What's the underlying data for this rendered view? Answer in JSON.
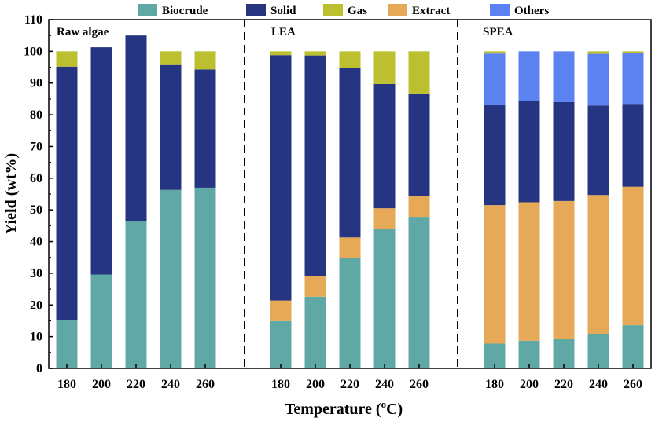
{
  "chart_data": {
    "type": "bar",
    "stacked": true,
    "xlabel": "Temperature (",
    "xlabel_sup": "o",
    "xlabel_end": "C)",
    "ylabel": "Yield (wt%)",
    "ylim": [
      0,
      110
    ],
    "yticks": [
      0,
      10,
      20,
      30,
      40,
      50,
      60,
      70,
      80,
      90,
      100,
      110
    ],
    "legend_position": "top",
    "series_names": [
      "Biocrude",
      "Solid",
      "Gas",
      "Extract",
      "Others"
    ],
    "colors": {
      "Biocrude": "#5fa8a5",
      "Solid": "#253582",
      "Gas": "#bcbf2f",
      "Extract": "#e5a957",
      "Others": "#5b82f0"
    },
    "groups": [
      {
        "label": "Raw algae",
        "categories": [
          "180",
          "200",
          "220",
          "240",
          "260"
        ],
        "series": {
          "Biocrude": [
            15.2,
            29.6,
            46.5,
            56.3,
            57.0
          ],
          "Extract": [
            0,
            0,
            0,
            0,
            0
          ],
          "Solid": [
            80.0,
            71.7,
            58.5,
            39.4,
            37.3
          ],
          "Gas": [
            4.8,
            0,
            0,
            4.3,
            5.7
          ],
          "Others": [
            0,
            0,
            0,
            0,
            0
          ]
        }
      },
      {
        "label": "LEA",
        "categories": [
          "180",
          "200",
          "220",
          "240",
          "260"
        ],
        "series": {
          "Biocrude": [
            14.9,
            22.6,
            34.7,
            44.1,
            47.8
          ],
          "Extract": [
            6.5,
            6.5,
            6.6,
            6.4,
            6.7
          ],
          "Solid": [
            77.4,
            69.6,
            53.4,
            39.2,
            32.0
          ],
          "Gas": [
            1.2,
            1.3,
            5.3,
            10.3,
            13.5
          ],
          "Others": [
            0,
            0,
            0,
            0,
            0
          ]
        }
      },
      {
        "label": "SPEA",
        "categories": [
          "180",
          "200",
          "220",
          "240",
          "260"
        ],
        "series": {
          "Biocrude": [
            7.8,
            8.7,
            9.2,
            10.9,
            13.6
          ],
          "Extract": [
            43.7,
            43.7,
            43.6,
            43.8,
            43.7
          ],
          "Solid": [
            31.5,
            31.9,
            31.2,
            28.2,
            25.9
          ],
          "Gas": [
            0.7,
            0,
            0,
            0.8,
            0.5
          ],
          "Others": [
            16.3,
            15.7,
            16.0,
            16.3,
            16.3
          ]
        }
      }
    ]
  }
}
